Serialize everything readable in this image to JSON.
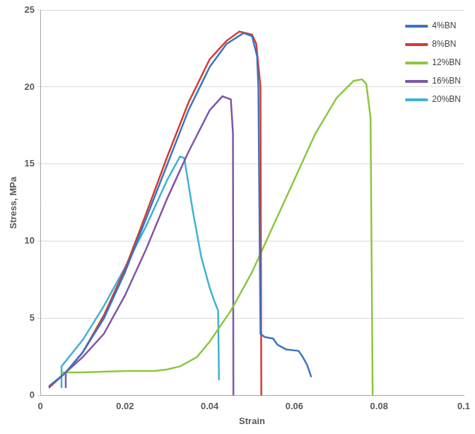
{
  "chart_data": {
    "type": "line",
    "x_label": "Strain",
    "y_label": "Stress, MPa",
    "xlim": [
      0,
      0.1
    ],
    "xticks": [
      0,
      0.02,
      0.04,
      0.06,
      0.08,
      0.1
    ],
    "ylim": [
      0,
      25
    ],
    "yticks": [
      0,
      5,
      10,
      15,
      20,
      25
    ],
    "grid": "y",
    "legend": "top-right",
    "series": [
      {
        "name": "4%BN",
        "color": "#3a74c4",
        "x": [
          0.002,
          0.006,
          0.01,
          0.015,
          0.02,
          0.025,
          0.03,
          0.035,
          0.04,
          0.044,
          0.048,
          0.05,
          0.0512,
          0.0515,
          0.052,
          0.053,
          0.055,
          0.056,
          0.058,
          0.061,
          0.062,
          0.063,
          0.064
        ],
        "values": [
          0.6,
          1.5,
          2.8,
          5,
          8,
          11.5,
          15,
          18.5,
          21.3,
          22.8,
          23.5,
          23.3,
          22,
          20,
          4,
          3.8,
          3.7,
          3.3,
          3,
          2.9,
          2.5,
          2,
          1.2
        ]
      },
      {
        "name": "8%BN",
        "color": "#d63a2f",
        "x": [
          0.002,
          0.006,
          0.01,
          0.015,
          0.02,
          0.025,
          0.03,
          0.035,
          0.04,
          0.044,
          0.047,
          0.05,
          0.051,
          0.052,
          0.0522
        ],
        "values": [
          0.5,
          1.5,
          2.8,
          5.2,
          8.2,
          11.8,
          15.5,
          19,
          21.8,
          23,
          23.6,
          23.4,
          22.8,
          20,
          0
        ]
      },
      {
        "name": "12%BN",
        "color": "#8dc63f",
        "x": [
          0.005,
          0.01,
          0.02,
          0.027,
          0.03,
          0.033,
          0.037,
          0.04,
          0.045,
          0.05,
          0.055,
          0.06,
          0.065,
          0.07,
          0.074,
          0.076,
          0.077,
          0.078,
          0.0785
        ],
        "values": [
          1.5,
          1.5,
          1.6,
          1.6,
          1.7,
          1.9,
          2.5,
          3.5,
          5.5,
          8,
          11,
          14,
          17,
          19.3,
          20.4,
          20.5,
          20.2,
          18,
          0
        ]
      },
      {
        "name": "16%BN",
        "color": "#8055a8",
        "x": [
          0.006,
          0.006,
          0.01,
          0.015,
          0.02,
          0.025,
          0.03,
          0.035,
          0.04,
          0.043,
          0.045,
          0.0455,
          0.0456
        ],
        "values": [
          0.5,
          1.5,
          2.5,
          4,
          6.5,
          9.5,
          12.8,
          15.8,
          18.5,
          19.4,
          19.2,
          17,
          0
        ]
      },
      {
        "name": "20%BN",
        "color": "#3fb2d0",
        "x": [
          0.005,
          0.005,
          0.01,
          0.015,
          0.02,
          0.025,
          0.03,
          0.033,
          0.034,
          0.036,
          0.038,
          0.04,
          0.041,
          0.042,
          0.0422
        ],
        "values": [
          0.5,
          1.9,
          3.6,
          5.8,
          8.3,
          11,
          14,
          15.5,
          15.4,
          12,
          9,
          7,
          6.2,
          5.5,
          1
        ]
      }
    ]
  }
}
